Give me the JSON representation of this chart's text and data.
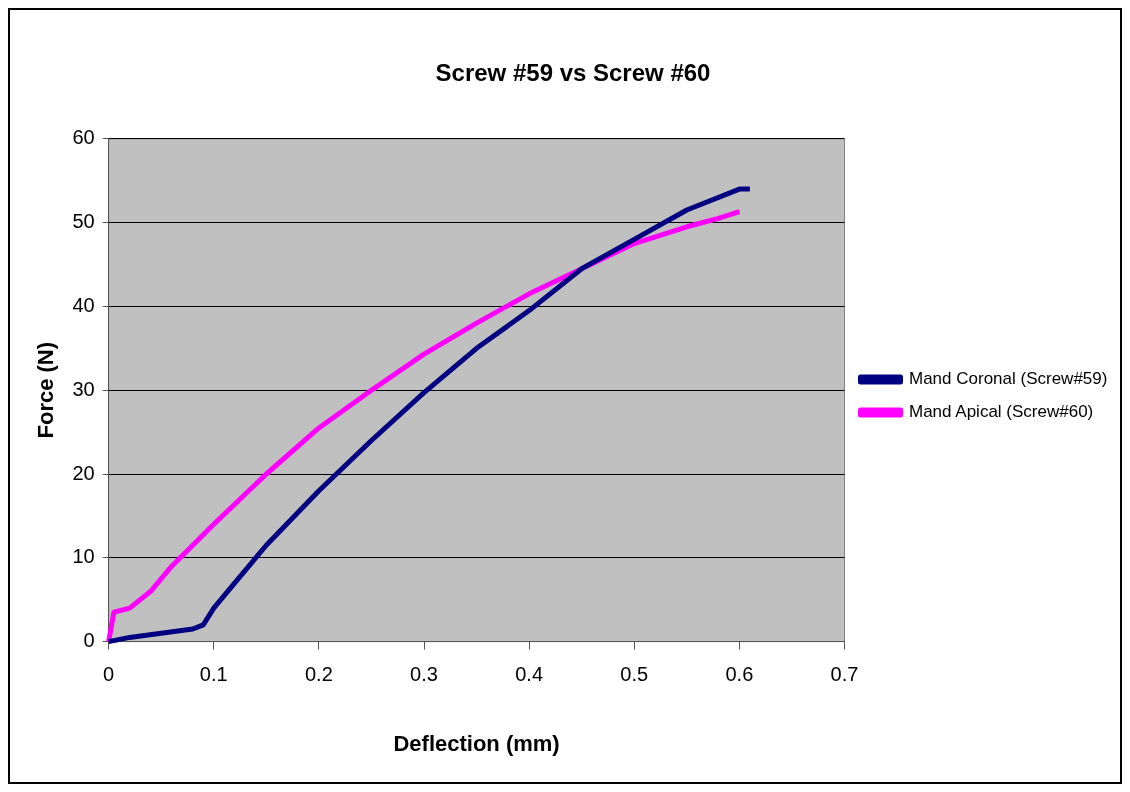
{
  "chart_data": {
    "type": "line",
    "title": "Screw #59 vs Screw #60",
    "xlabel": "Deflection (mm)",
    "ylabel": "Force (N)",
    "xlim": [
      0,
      0.7
    ],
    "xticks": [
      0,
      0.1,
      0.2,
      0.3,
      0.4,
      0.5,
      0.6,
      0.7
    ],
    "ylim": [
      0,
      60
    ],
    "yticks": [
      0,
      10,
      20,
      30,
      40,
      50,
      60
    ],
    "grid": "y",
    "legend": "right",
    "series": [
      {
        "name": "Mand Coronal (Screw#59)",
        "color": "#000080",
        "x": [
          0,
          0.02,
          0.05,
          0.08,
          0.09,
          0.1,
          0.12,
          0.15,
          0.2,
          0.25,
          0.3,
          0.35,
          0.4,
          0.45,
          0.5,
          0.55,
          0.6,
          0.61
        ],
        "values": [
          0,
          0.5,
          1,
          1.5,
          2,
          4,
          7,
          11.5,
          18,
          24,
          29.7,
          35,
          39.5,
          44.5,
          48,
          51.5,
          54,
          54
        ]
      },
      {
        "name": "Mand Apical (Screw#60)",
        "color": "#ff00ff",
        "x": [
          0,
          0.005,
          0.02,
          0.04,
          0.06,
          0.1,
          0.15,
          0.2,
          0.25,
          0.3,
          0.35,
          0.4,
          0.45,
          0.5,
          0.55,
          0.58,
          0.6
        ],
        "values": [
          0,
          3.5,
          4,
          6,
          9,
          14,
          20,
          25.5,
          30,
          34.3,
          38,
          41.5,
          44.5,
          47.5,
          49.5,
          50.5,
          51.3
        ]
      }
    ]
  }
}
